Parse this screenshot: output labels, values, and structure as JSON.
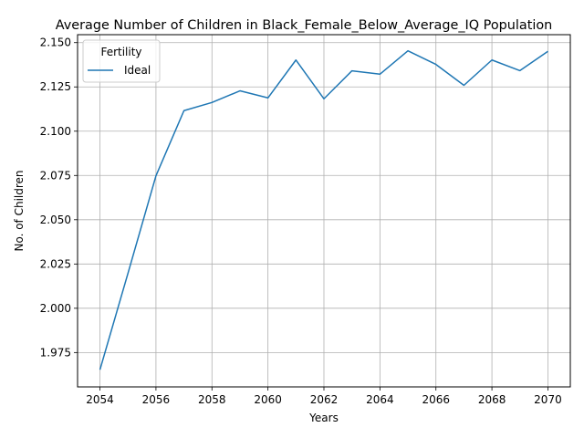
{
  "chart_data": {
    "type": "line",
    "title": "Average Number of Children in Black_Female_Below_Average_IQ Population",
    "xlabel": "Years",
    "ylabel": "No. of Children",
    "xlim": [
      2053.2,
      2070.8
    ],
    "ylim": [
      1.9556,
      2.1545
    ],
    "xticks": [
      2054,
      2056,
      2058,
      2060,
      2062,
      2064,
      2066,
      2068,
      2070
    ],
    "yticks": [
      1.975,
      2.0,
      2.025,
      2.05,
      2.075,
      2.1,
      2.125,
      2.15
    ],
    "ytick_labels": [
      "1.975",
      "2.000",
      "2.025",
      "2.050",
      "2.075",
      "2.100",
      "2.125",
      "2.150"
    ],
    "grid": true,
    "legend": {
      "title": "Fertility",
      "position": "top-left"
    },
    "x": [
      2054,
      2055,
      2056,
      2057,
      2058,
      2059,
      2060,
      2061,
      2062,
      2063,
      2064,
      2065,
      2066,
      2067,
      2068,
      2069,
      2070
    ],
    "series": [
      {
        "name": "Ideal",
        "color": "#1f77b4",
        "values": [
          1.9653,
          2.0197,
          2.0748,
          2.1116,
          2.1162,
          2.1228,
          2.1188,
          2.1402,
          2.1183,
          2.1341,
          2.1322,
          2.1454,
          2.1377,
          2.1259,
          2.1402,
          2.1342,
          2.1451
        ]
      }
    ]
  }
}
